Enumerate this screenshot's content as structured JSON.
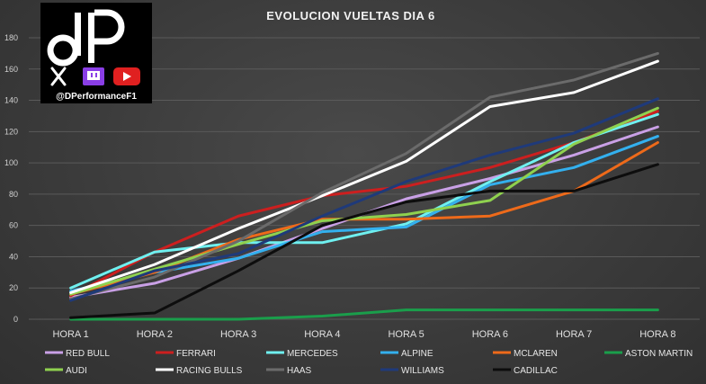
{
  "brand": {
    "logo_text": "dP",
    "handle": "@DPerformanceF1",
    "social_icons": [
      "x-icon",
      "twitch-icon",
      "youtube-icon"
    ]
  },
  "chart_data": {
    "type": "line",
    "title": "EVOLUCION VUELTAS DIA 6",
    "xlabel": "",
    "ylabel": "",
    "categories": [
      "HORA 1",
      "HORA 2",
      "HORA 3",
      "HORA 4",
      "HORA 5",
      "HORA 6",
      "HORA 7",
      "HORA 8"
    ],
    "ylim": [
      0,
      180
    ],
    "yticks": [
      0,
      20,
      40,
      60,
      80,
      100,
      120,
      140,
      160,
      180
    ],
    "grid": true,
    "legend_position": "bottom",
    "series": [
      {
        "name": "RED BULL",
        "color": "#c9a0e6",
        "values": [
          14,
          23,
          39,
          58,
          77,
          90,
          105,
          123
        ]
      },
      {
        "name": "FERRARI",
        "color": "#cc1f1f",
        "values": [
          15,
          43,
          66,
          79,
          85,
          97,
          113,
          133
        ]
      },
      {
        "name": "MERCEDES",
        "color": "#6ff0f0",
        "values": [
          20,
          43,
          49,
          49,
          61,
          88,
          113,
          131
        ]
      },
      {
        "name": "ALPINE",
        "color": "#33b0ee",
        "values": [
          18,
          30,
          39,
          56,
          59,
          86,
          97,
          117
        ]
      },
      {
        "name": "MCLAREN",
        "color": "#ee6a1a",
        "values": [
          16,
          30,
          51,
          64,
          64,
          66,
          82,
          113
        ]
      },
      {
        "name": "ASTON MARTIN",
        "color": "#1a9e4b",
        "values": [
          0,
          0,
          0,
          2,
          6,
          6,
          6,
          6
        ]
      },
      {
        "name": "AUDI",
        "color": "#8fd14f",
        "values": [
          16,
          32,
          48,
          63,
          67,
          76,
          112,
          135
        ]
      },
      {
        "name": "RACING BULLS",
        "color": "#ffffff",
        "values": [
          17,
          35,
          58,
          79,
          101,
          136,
          145,
          165
        ]
      },
      {
        "name": "HAAS",
        "color": "#6b6b6b",
        "values": [
          13,
          27,
          50,
          81,
          106,
          142,
          153,
          170
        ]
      },
      {
        "name": "WILLIAMS",
        "color": "#1f3a7a",
        "values": [
          12,
          31,
          42,
          66,
          88,
          105,
          119,
          141
        ]
      },
      {
        "name": "CADILLAC",
        "color": "#0d0d0d",
        "values": [
          1,
          4,
          31,
          60,
          75,
          82,
          82,
          99
        ]
      }
    ]
  }
}
